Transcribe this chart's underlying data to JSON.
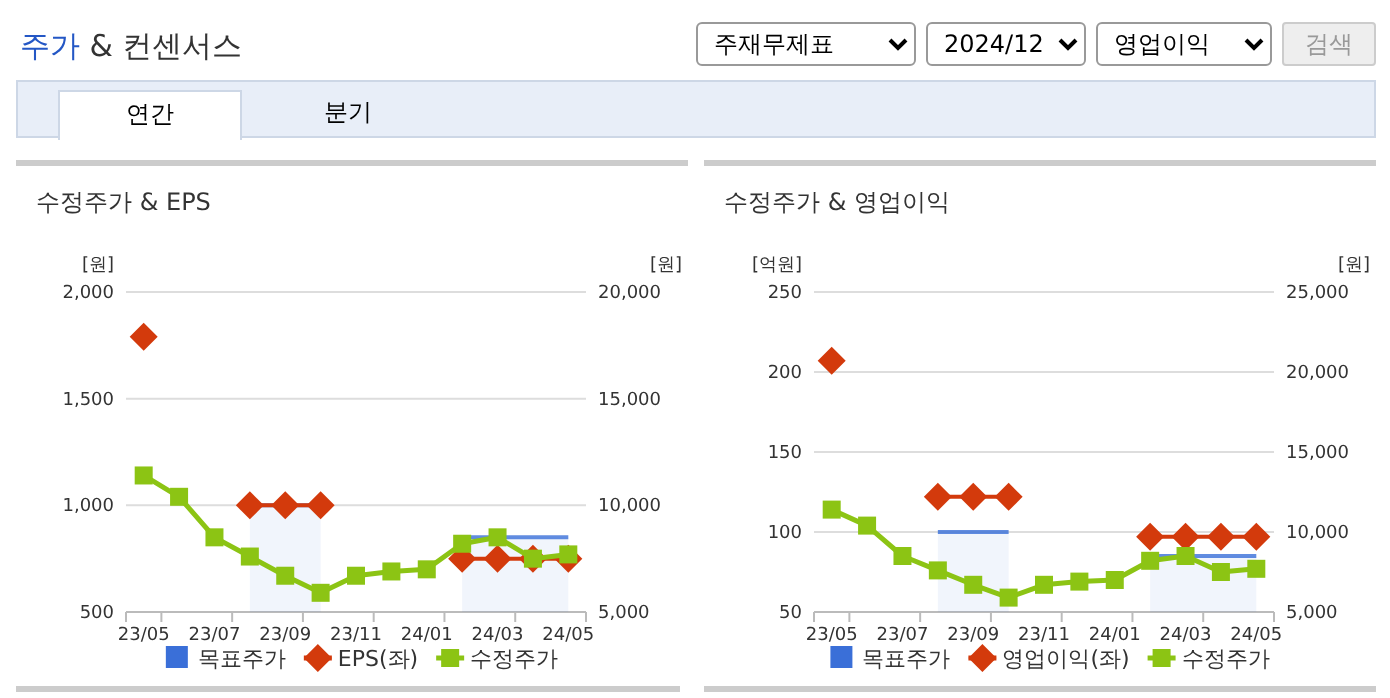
{
  "chart_data": [
    {
      "type": "other",
      "title": "주가 & 컨센서스",
      "annotations": [
        "주재무제표",
        "2024/12",
        "영업이익",
        "검색",
        "연간",
        "분기"
      ]
    },
    {
      "type": "line",
      "title": "수정주가 & EPS",
      "ylabel": "[원]",
      "y2label": "[원]",
      "categories": [
        "23/05",
        null,
        "23/07",
        null,
        "23/09",
        null,
        "23/11",
        null,
        "24/01",
        null,
        "24/03",
        null,
        "24/05"
      ],
      "ylim": [
        500,
        2000
      ],
      "yticks": [
        500,
        {
          "value": 1000,
          "label": "1,000"
        },
        {
          "value": 1500,
          "label": "1,500"
        },
        {
          "value": 2000,
          "label": "2,000"
        }
      ],
      "y2lim": [
        5000,
        20000
      ],
      "y2ticks": [
        {
          "value": 5000,
          "label": "5,000"
        },
        {
          "value": 10000,
          "label": "10,000"
        },
        {
          "value": 15000,
          "label": "15,000"
        },
        {
          "value": 20000,
          "label": "20,000"
        }
      ],
      "grid": "y",
      "legend": "bottom",
      "series": [
        {
          "name": "목표주가",
          "type": "area",
          "axis": "y2",
          "color": "#3a6fd8",
          "values": [
            null,
            null,
            null,
            10000,
            10000,
            10000,
            null,
            null,
            null,
            8500,
            8500,
            8500,
            8500
          ]
        },
        {
          "name": "EPS(좌)",
          "type": "line",
          "marker": "diamond",
          "axis": "y",
          "color": "#d33a0c",
          "values": [
            1790,
            null,
            null,
            1000,
            1000,
            1000,
            null,
            null,
            null,
            750,
            750,
            750,
            750
          ]
        },
        {
          "name": "수정주가",
          "type": "line",
          "marker": "square",
          "axis": "y2",
          "color": "#8cc414",
          "values": [
            11400,
            10400,
            8500,
            7600,
            6700,
            5900,
            6700,
            6900,
            7000,
            8200,
            8500,
            7500,
            7700
          ]
        }
      ]
    },
    {
      "type": "line",
      "title": "수정주가 & 영업이익",
      "ylabel": "[억원]",
      "y2label": "[원]",
      "categories": [
        "23/05",
        null,
        "23/07",
        null,
        "23/09",
        null,
        "23/11",
        null,
        "24/01",
        null,
        "24/03",
        null,
        "24/05"
      ],
      "ylim": [
        50,
        250
      ],
      "yticks": [
        50,
        100,
        150,
        200,
        250
      ],
      "y2lim": [
        5000,
        25000
      ],
      "y2ticks": [
        {
          "value": 5000,
          "label": "5,000"
        },
        {
          "value": 10000,
          "label": "10,000"
        },
        {
          "value": 15000,
          "label": "15,000"
        },
        {
          "value": 20000,
          "label": "20,000"
        },
        {
          "value": 25000,
          "label": "25,000"
        }
      ],
      "grid": "y",
      "legend": "bottom",
      "series": [
        {
          "name": "목표주가",
          "type": "area",
          "axis": "y2",
          "color": "#3a6fd8",
          "values": [
            null,
            null,
            null,
            10000,
            10000,
            10000,
            null,
            null,
            null,
            8500,
            8500,
            8500,
            8500
          ]
        },
        {
          "name": "영업이익(좌)",
          "type": "line",
          "marker": "diamond",
          "axis": "y",
          "color": "#d33a0c",
          "values": [
            207,
            null,
            null,
            122,
            122,
            122,
            null,
            null,
            null,
            97,
            97,
            97,
            97
          ]
        },
        {
          "name": "수정주가",
          "type": "line",
          "marker": "square",
          "axis": "y2",
          "color": "#8cc414",
          "values": [
            11400,
            10400,
            8500,
            7600,
            6700,
            5900,
            6700,
            6900,
            7000,
            8200,
            8500,
            7500,
            7700
          ]
        }
      ]
    }
  ]
}
